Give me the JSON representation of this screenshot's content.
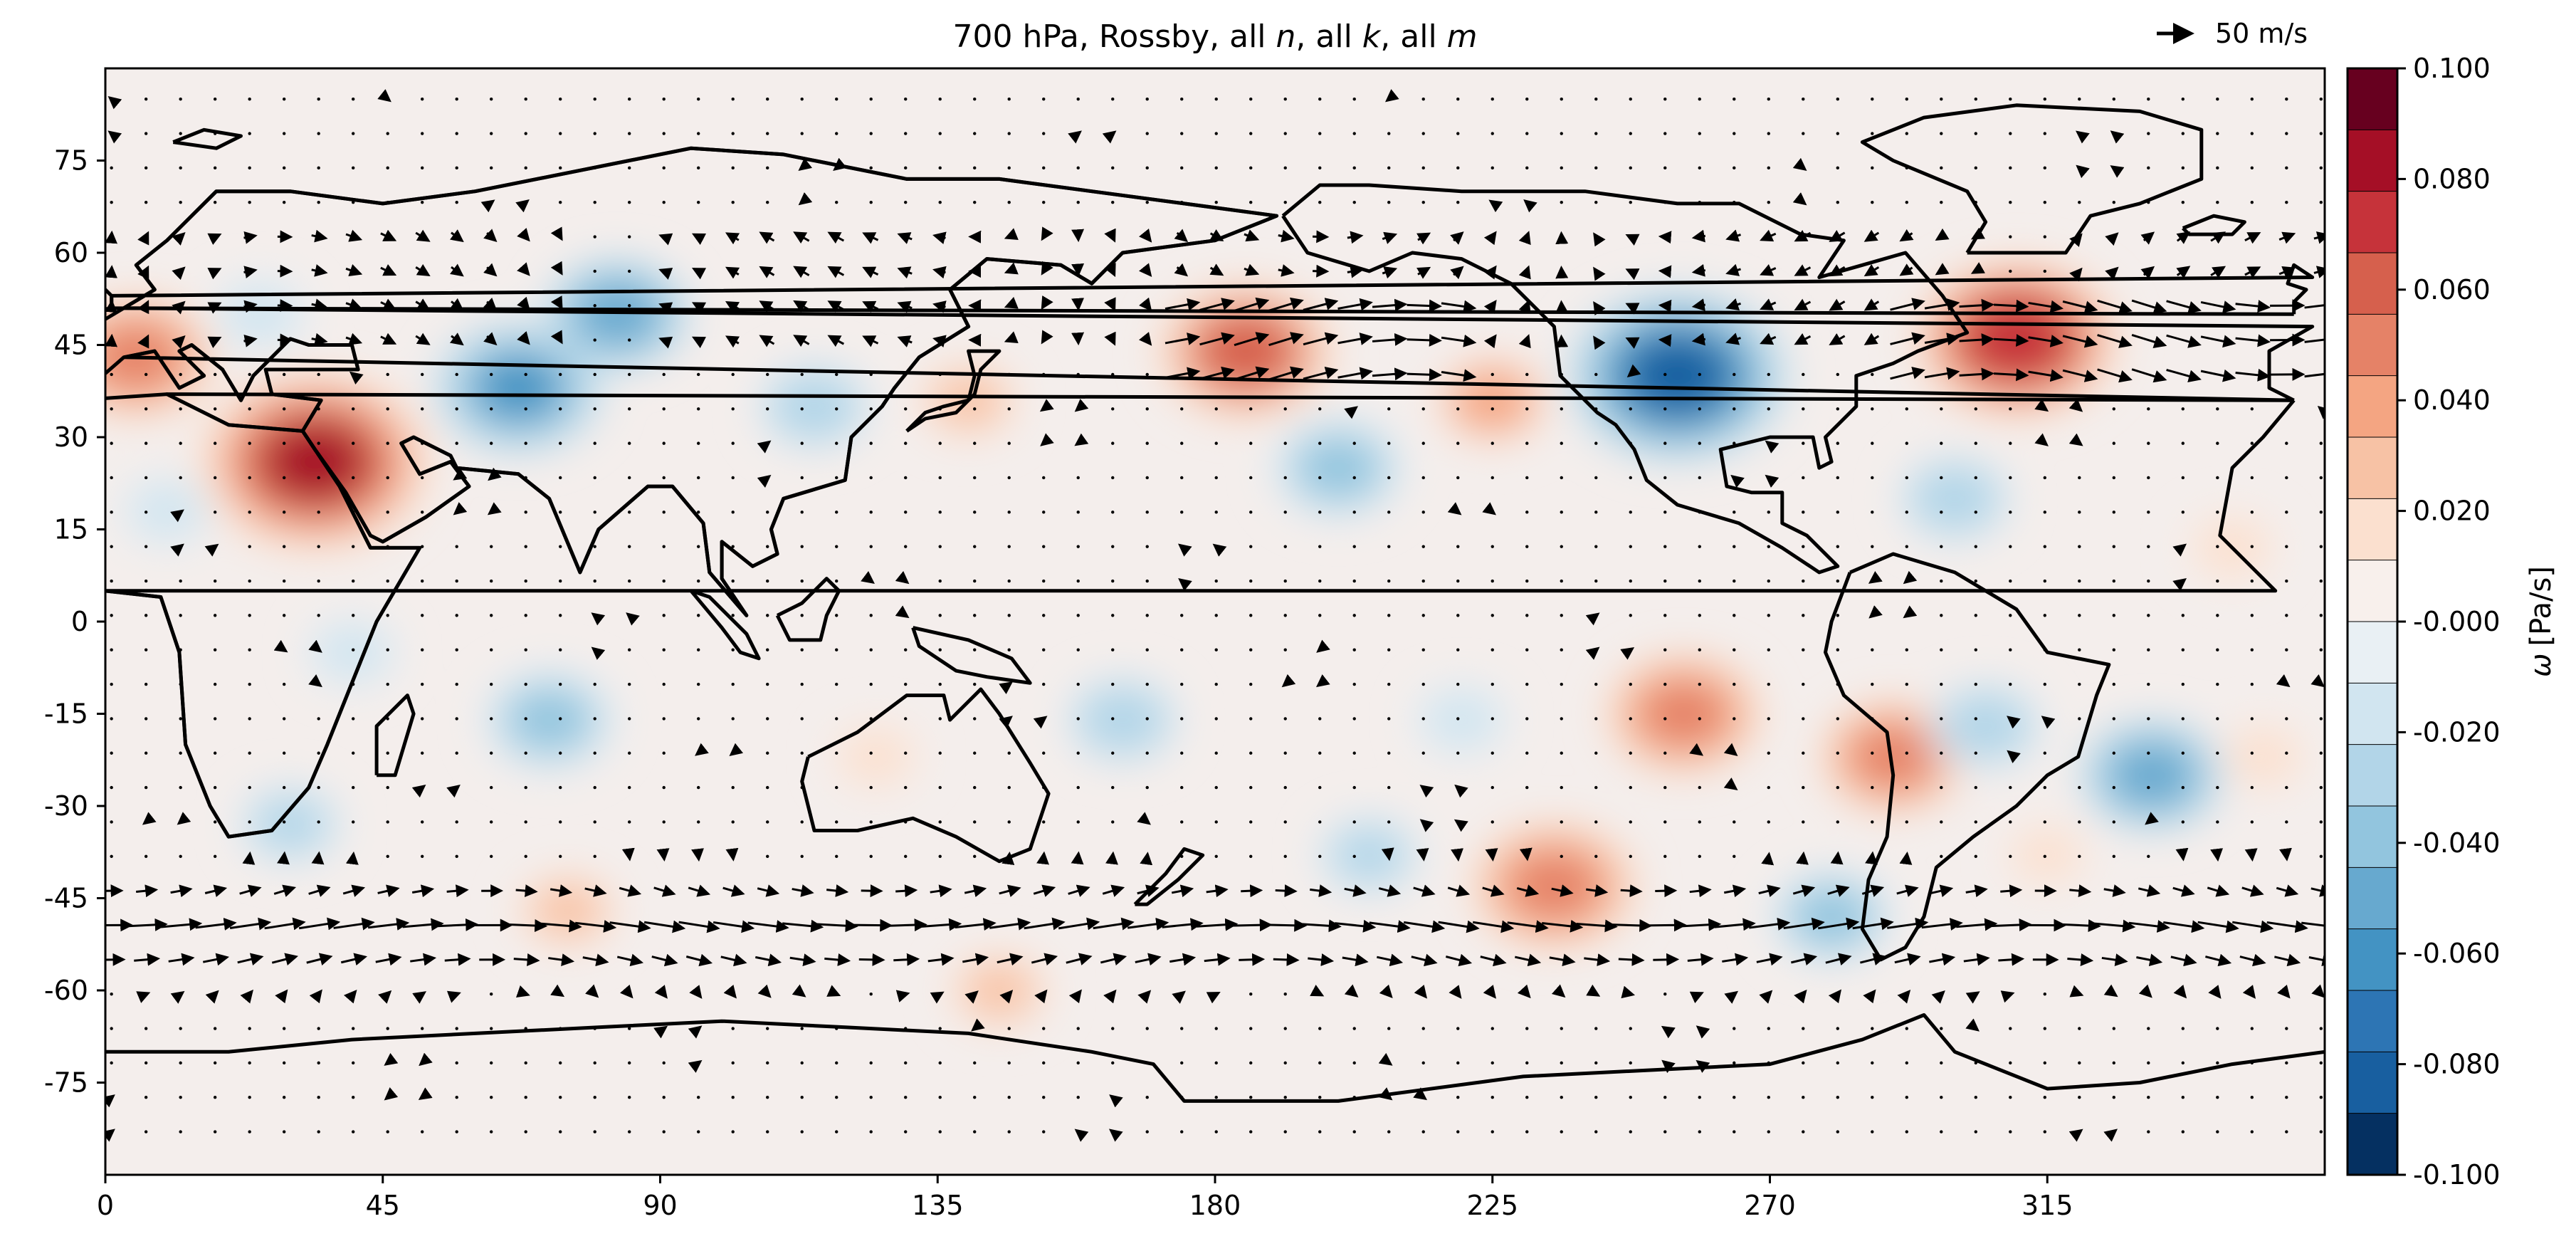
{
  "title": {
    "parts": [
      {
        "text": "700 hPa, Rossby, all ",
        "italic": false
      },
      {
        "text": "n",
        "italic": true
      },
      {
        "text": ", all ",
        "italic": false
      },
      {
        "text": "k",
        "italic": true
      },
      {
        "text": ", all ",
        "italic": false
      },
      {
        "text": "m",
        "italic": true
      }
    ]
  },
  "quiver_key": {
    "label": "50 m/s"
  },
  "map": {
    "lon_range": [
      0,
      360
    ],
    "lat_range": [
      -90,
      90
    ],
    "x_ticks": [
      "0",
      "45",
      "90",
      "135",
      "180",
      "225",
      "270",
      "315"
    ],
    "y_ticks": [
      "75",
      "60",
      "45",
      "30",
      "15",
      "0",
      "-15",
      "-30",
      "-45",
      "-60",
      "-75"
    ],
    "x_tick_values": [
      0,
      45,
      90,
      135,
      180,
      225,
      270,
      315
    ],
    "y_tick_values": [
      75,
      60,
      45,
      30,
      15,
      0,
      -15,
      -30,
      -45,
      -60,
      -75
    ]
  },
  "colorbar": {
    "label_symbol": "ω",
    "label_unit": "[Pa/s]",
    "range": [
      -0.1,
      0.1
    ],
    "tick_labels": [
      "0.100",
      "0.080",
      "0.060",
      "0.040",
      "0.020",
      "-0.000",
      "-0.020",
      "-0.040",
      "-0.060",
      "-0.080",
      "-0.100"
    ],
    "tick_values": [
      0.1,
      0.08,
      0.06,
      0.04,
      0.02,
      0.0,
      -0.02,
      -0.04,
      -0.06,
      -0.08,
      -0.1
    ],
    "colors_top_to_bottom": [
      "#67001f",
      "#a50f26",
      "#c6333a",
      "#d6604d",
      "#e58267",
      "#f4a582",
      "#f7c2a5",
      "#fbe0cf",
      "#f8f0ec",
      "#e9f0f4",
      "#d1e5f0",
      "#b2d5e8",
      "#92c5de",
      "#67a9cf",
      "#4393c3",
      "#2d75b4",
      "#185fa0",
      "#053061"
    ]
  },
  "chart_data": {
    "type": "heatmap",
    "variable": "ω",
    "units": "Pa/s",
    "xlim": [
      0,
      360
    ],
    "ylim": [
      -90,
      90
    ],
    "vmin": -0.1,
    "vmax": 0.1,
    "features": [
      {
        "lon": 34,
        "lat": 26,
        "value": 0.088
      },
      {
        "lon": 310,
        "lat": 46,
        "value": 0.075
      },
      {
        "lon": 185,
        "lat": 44,
        "value": 0.06
      },
      {
        "lon": 5,
        "lat": 43,
        "value": 0.05
      },
      {
        "lon": 256,
        "lat": -15,
        "value": 0.05
      },
      {
        "lon": 235,
        "lat": -43,
        "value": 0.055
      },
      {
        "lon": 290,
        "lat": -22,
        "value": 0.045
      },
      {
        "lon": 225,
        "lat": 36,
        "value": 0.035
      },
      {
        "lon": 140,
        "lat": 36,
        "value": 0.025
      },
      {
        "lon": 75,
        "lat": -47,
        "value": 0.025
      },
      {
        "lon": 125,
        "lat": -22,
        "value": 0.018
      },
      {
        "lon": 345,
        "lat": 12,
        "value": 0.02
      },
      {
        "lon": 350,
        "lat": -22,
        "value": 0.02
      },
      {
        "lon": 145,
        "lat": -60,
        "value": 0.025
      },
      {
        "lon": 315,
        "lat": -38,
        "value": 0.015
      },
      {
        "lon": 255,
        "lat": 40,
        "value": -0.085
      },
      {
        "lon": 67,
        "lat": 38,
        "value": -0.058
      },
      {
        "lon": 83,
        "lat": 50,
        "value": -0.045
      },
      {
        "lon": 200,
        "lat": 25,
        "value": -0.04
      },
      {
        "lon": 72,
        "lat": -16,
        "value": -0.04
      },
      {
        "lon": 332,
        "lat": -25,
        "value": -0.045
      },
      {
        "lon": 305,
        "lat": -17,
        "value": -0.03
      },
      {
        "lon": 280,
        "lat": -48,
        "value": -0.035
      },
      {
        "lon": 165,
        "lat": -16,
        "value": -0.03
      },
      {
        "lon": 115,
        "lat": 35,
        "value": -0.03
      },
      {
        "lon": 300,
        "lat": 20,
        "value": -0.03
      },
      {
        "lon": 30,
        "lat": -33,
        "value": -0.025
      },
      {
        "lon": 205,
        "lat": -38,
        "value": -0.025
      },
      {
        "lon": 220,
        "lat": -16,
        "value": -0.02
      },
      {
        "lon": 25,
        "lat": 50,
        "value": -0.02
      },
      {
        "lon": 10,
        "lat": 18,
        "value": -0.018
      },
      {
        "lon": 40,
        "lat": -5,
        "value": -0.018
      }
    ]
  }
}
